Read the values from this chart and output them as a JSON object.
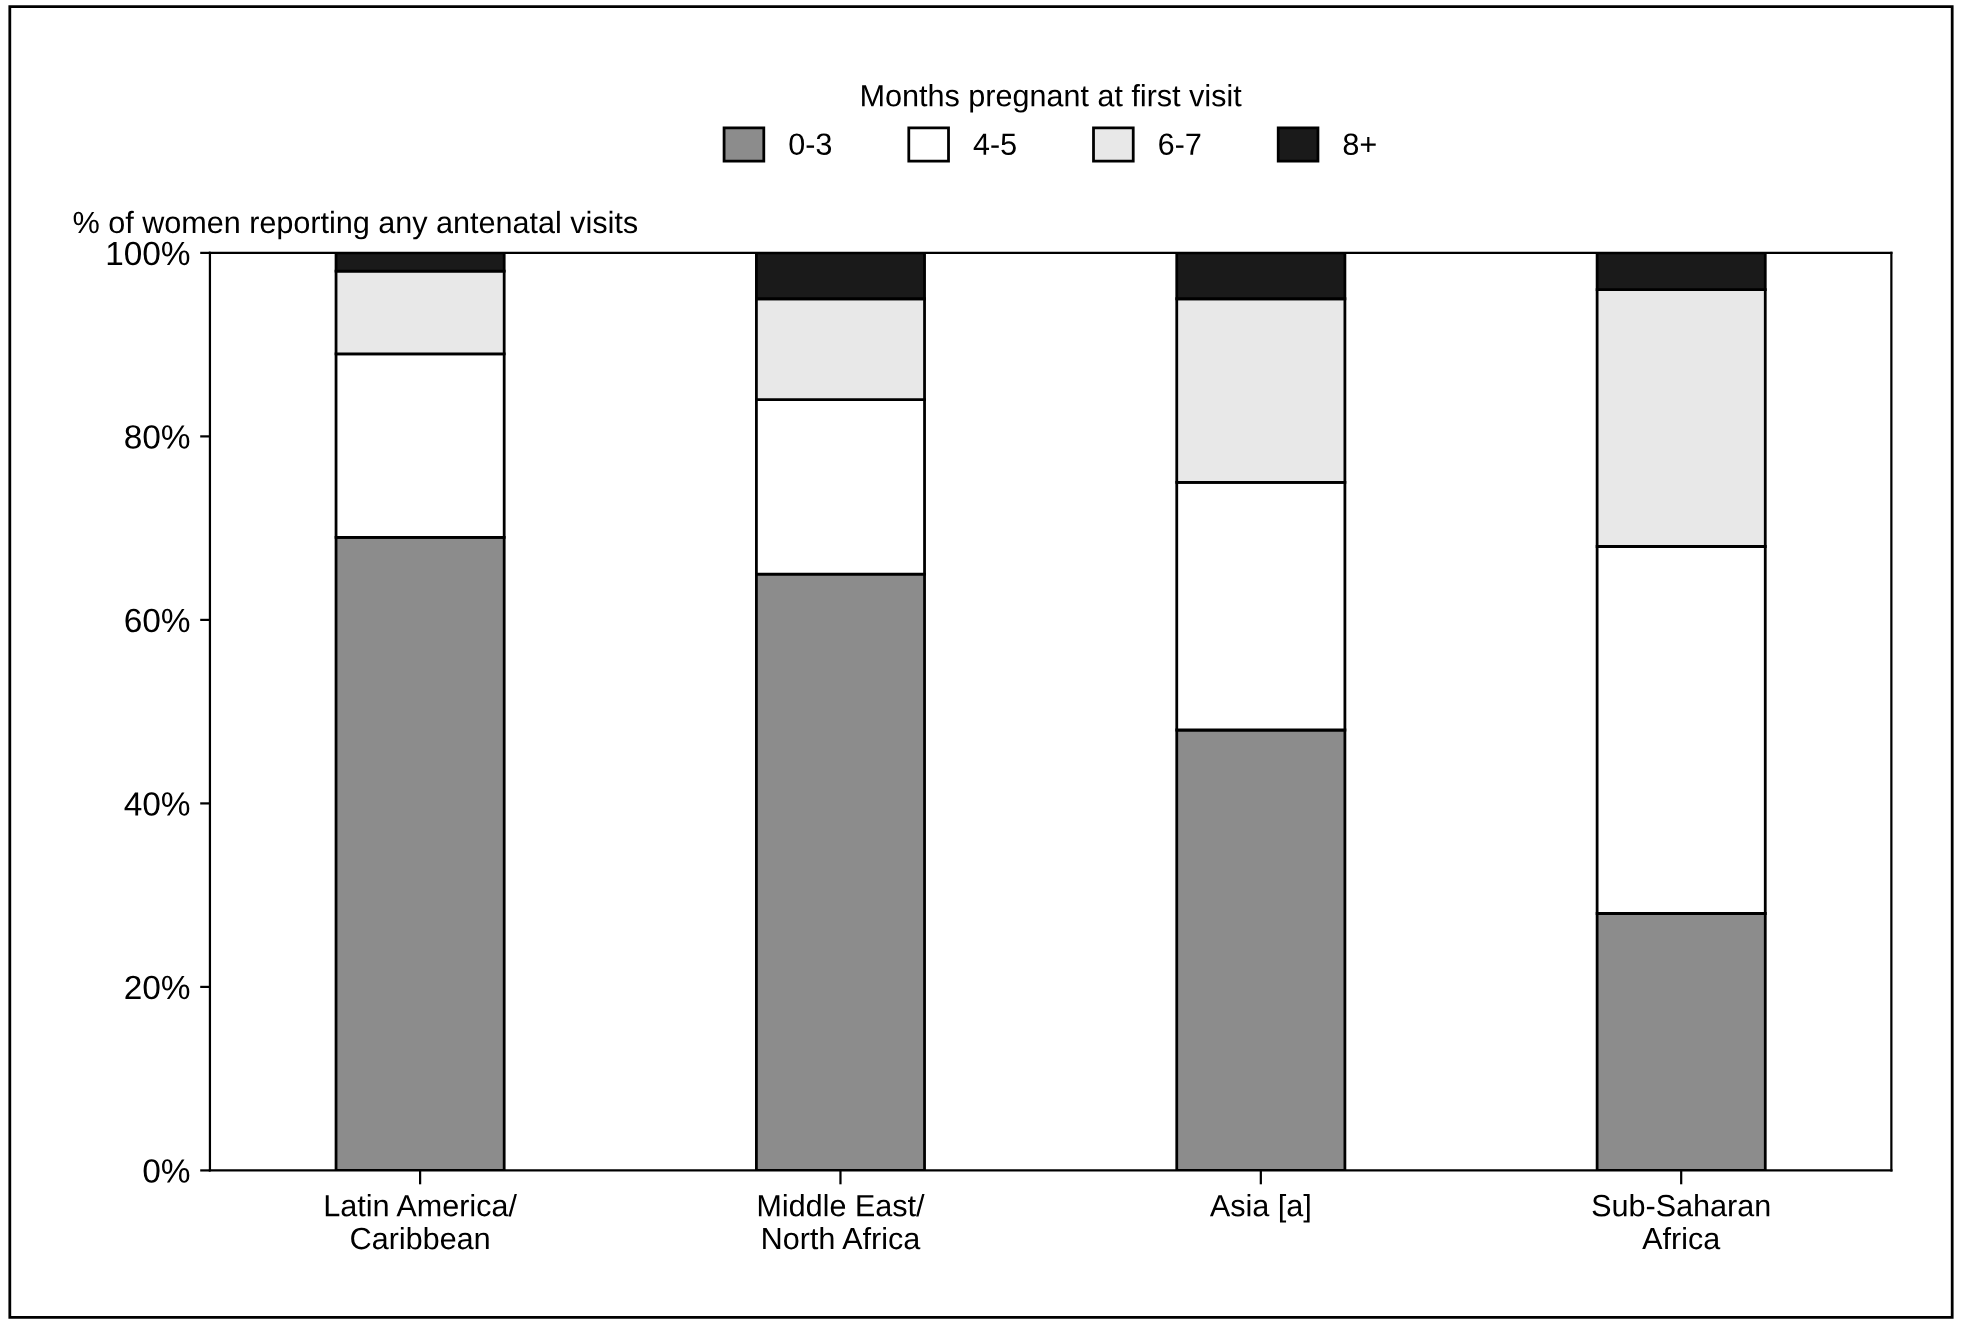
{
  "chart_data": {
    "type": "bar",
    "stacked": true,
    "legend_title": "Months pregnant at first visit",
    "ylabel": "% of women reporting any antenatal visits",
    "categories": [
      "Latin America/\nCaribbean",
      "Middle East/\nNorth Africa",
      "Asia [a]",
      "Sub-Saharan\nAfrica"
    ],
    "series": [
      {
        "name": "0-3",
        "color": "#8c8c8c",
        "values": [
          69,
          65,
          48,
          28
        ]
      },
      {
        "name": "4-5",
        "color": "#ffffff",
        "values": [
          20,
          19,
          27,
          40
        ]
      },
      {
        "name": "6-7",
        "color": "#e8e8e8",
        "values": [
          9,
          11,
          20,
          28
        ]
      },
      {
        "name": "8+",
        "color": "#1a1a1a",
        "values": [
          2,
          5,
          5,
          4
        ]
      }
    ],
    "ylim": [
      0,
      100
    ],
    "yticks": [
      {
        "value": 0,
        "label": "0%"
      },
      {
        "value": 20,
        "label": "20%"
      },
      {
        "value": 40,
        "label": "40%"
      },
      {
        "value": 60,
        "label": "60%"
      },
      {
        "value": 80,
        "label": "80%"
      },
      {
        "value": 100,
        "label": "100%"
      }
    ],
    "legend": "top",
    "grid": false
  }
}
